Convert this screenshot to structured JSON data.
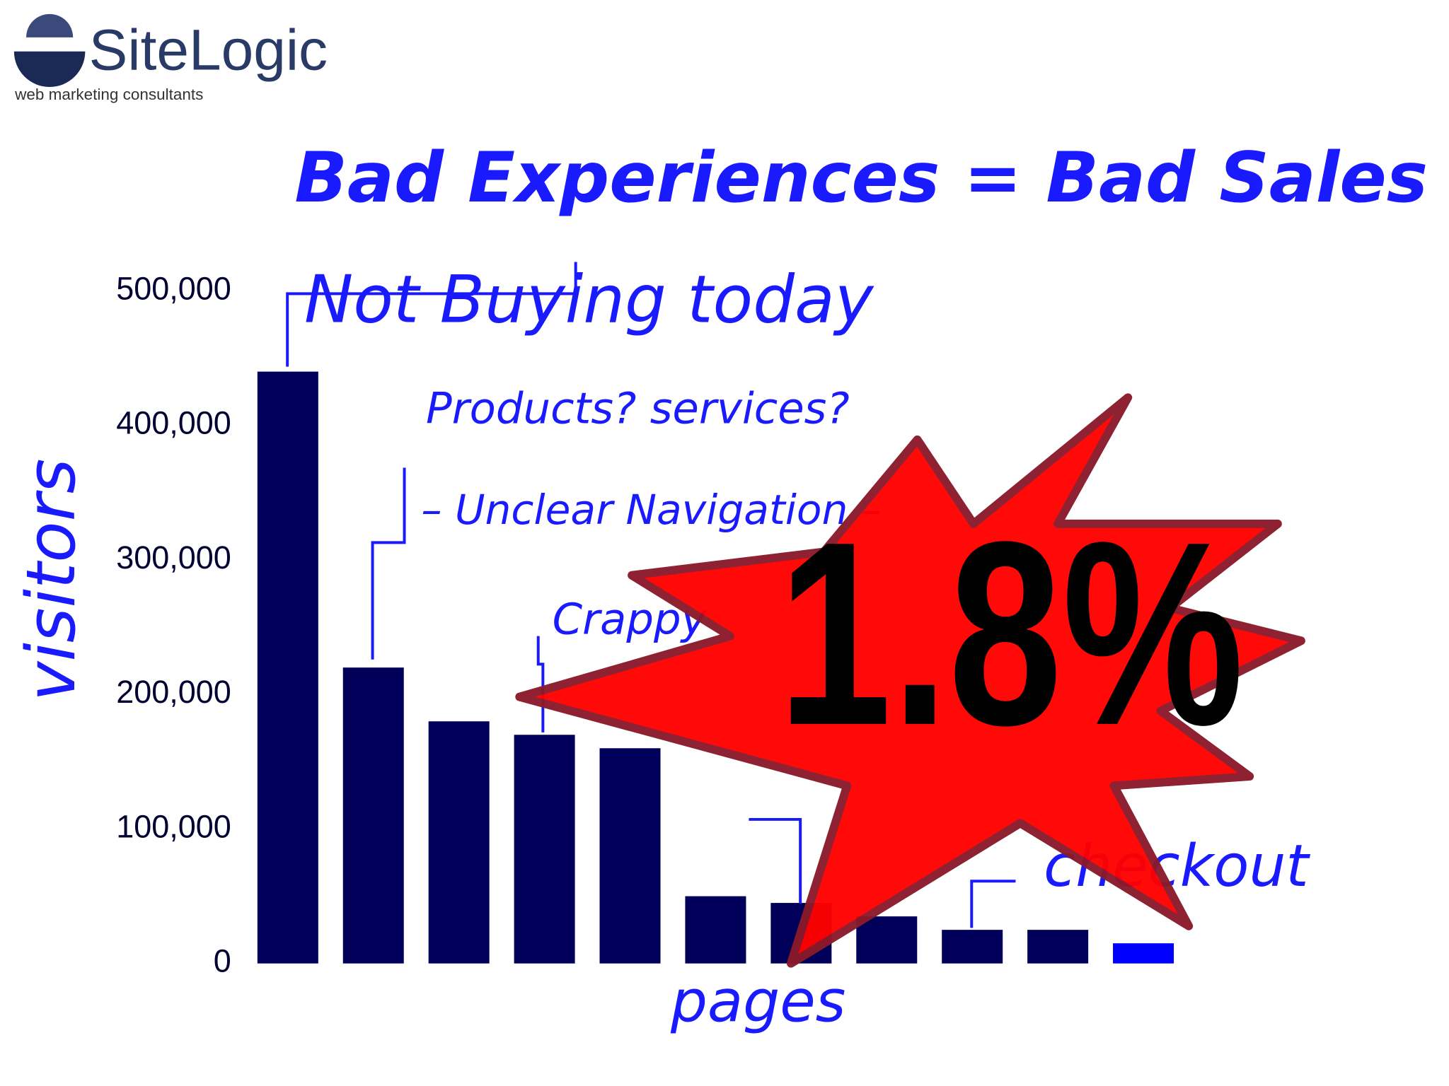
{
  "logo": {
    "name": "SiteLogic",
    "tagline": "web marketing consultants"
  },
  "chart_data": {
    "type": "bar",
    "title": "Bad Experiences = Bad Sales",
    "y_label": "visitors",
    "x_label": "pages",
    "categories": [
      null,
      null,
      null,
      null,
      null,
      null,
      null,
      null,
      null,
      null,
      null
    ],
    "values": [
      440000,
      220000,
      180000,
      170000,
      160000,
      50000,
      45000,
      35000,
      25000,
      25000,
      15000
    ],
    "colors": [
      "#00005a",
      "#00005a",
      "#00005a",
      "#00005a",
      "#00005a",
      "#00005a",
      "#00005a",
      "#00005a",
      "#00005a",
      "#00005a",
      "#0000ff"
    ],
    "ylim": [
      0,
      500000
    ],
    "yticks": [
      0,
      {
        "value": 100000,
        "label": "100,000"
      },
      {
        "value": 200000,
        "label": "200,000"
      },
      {
        "value": 300000,
        "label": "300,000"
      },
      {
        "value": 400000,
        "label": "400,000"
      },
      {
        "value": 500000,
        "label": "500,000"
      }
    ],
    "annotations": [
      "Not Buying today",
      "Products? services?",
      "– Unclear Navigation –",
      "Crappy",
      "checkout"
    ],
    "callout": "1.8%"
  }
}
